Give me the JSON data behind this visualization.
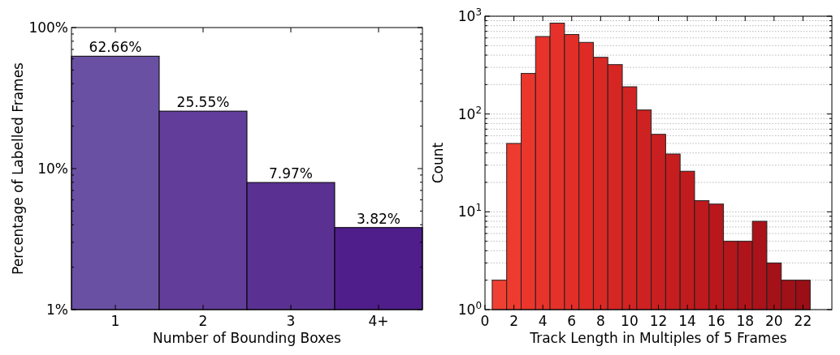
{
  "chart_data": [
    {
      "type": "bar",
      "xlabel": "Number of Bounding Boxes",
      "ylabel": "Percentage of Labelled Frames",
      "categories": [
        "1",
        "2",
        "3",
        "4+"
      ],
      "values": [
        62.66,
        25.55,
        7.97,
        3.82
      ],
      "colors": [
        "#6a50a3",
        "#623e9a",
        "#5a3192",
        "#4f1e8a"
      ],
      "value_labels": [
        "62.66%",
        "25.55%",
        "7.97%",
        "3.82%"
      ],
      "log": true,
      "ylim": [
        1,
        100
      ],
      "yticks": [
        {
          "value": 1,
          "label": "1%"
        },
        {
          "value": 2,
          "label": null
        },
        {
          "value": 3,
          "label": null
        },
        {
          "value": 4,
          "label": null
        },
        {
          "value": 5,
          "label": null
        },
        {
          "value": 6,
          "label": null
        },
        {
          "value": 7,
          "label": null
        },
        {
          "value": 8,
          "label": null
        },
        {
          "value": 9,
          "label": null
        },
        {
          "value": 10,
          "label": "10%"
        },
        {
          "value": 20,
          "label": null
        },
        {
          "value": 30,
          "label": null
        },
        {
          "value": 40,
          "label": null
        },
        {
          "value": 50,
          "label": null
        },
        {
          "value": 60,
          "label": null
        },
        {
          "value": 70,
          "label": null
        },
        {
          "value": 80,
          "label": null
        },
        {
          "value": 90,
          "label": null
        },
        {
          "value": 100,
          "label": "100%"
        }
      ],
      "grid": false
    },
    {
      "type": "histogram",
      "xlabel": "Track Length in Multiples of 5 Frames",
      "ylabel": "Count",
      "bins": [
        0.5,
        1.5,
        2.5,
        3.5,
        4.5,
        5.5,
        6.5,
        7.5,
        8.5,
        9.5,
        10.5,
        11.5,
        12.5,
        13.5,
        14.5,
        15.5,
        16.5,
        17.5,
        18.5,
        19.5,
        20.5,
        21.5,
        22.5
      ],
      "values": [
        2,
        50,
        260,
        620,
        850,
        650,
        540,
        380,
        320,
        190,
        110,
        62,
        39,
        26,
        13,
        12,
        5,
        5,
        8,
        3,
        2,
        2
      ],
      "colors": [
        "#ef4133",
        "#ee3b2f",
        "#eb362c",
        "#e8332b",
        "#e53129",
        "#e22e28",
        "#de2b26",
        "#da2925",
        "#d62624",
        "#d22422",
        "#ce2121",
        "#ca1f20",
        "#c61d1f",
        "#c21b1e",
        "#be191d",
        "#b9171c",
        "#b4161b",
        "#af141a",
        "#aa1319",
        "#a41118",
        "#9f1017",
        "#9a0e16"
      ],
      "log": true,
      "xlim": [
        0,
        24
      ],
      "xticks": [
        0,
        2,
        4,
        6,
        8,
        10,
        12,
        14,
        16,
        18,
        20,
        22
      ],
      "ylim": [
        1,
        1000
      ],
      "yticks": [
        {
          "value": 1,
          "label": "10$^{0}$"
        },
        {
          "value": 2,
          "label": null
        },
        {
          "value": 3,
          "label": null
        },
        {
          "value": 4,
          "label": null
        },
        {
          "value": 5,
          "label": null
        },
        {
          "value": 6,
          "label": null
        },
        {
          "value": 7,
          "label": null
        },
        {
          "value": 8,
          "label": null
        },
        {
          "value": 9,
          "label": null
        },
        {
          "value": 10,
          "label": "10$^{1}$"
        },
        {
          "value": 20,
          "label": null
        },
        {
          "value": 30,
          "label": null
        },
        {
          "value": 40,
          "label": null
        },
        {
          "value": 50,
          "label": null
        },
        {
          "value": 60,
          "label": null
        },
        {
          "value": 70,
          "label": null
        },
        {
          "value": 80,
          "label": null
        },
        {
          "value": 90,
          "label": null
        },
        {
          "value": 100,
          "label": "10$^{2}$"
        },
        {
          "value": 200,
          "label": null
        },
        {
          "value": 300,
          "label": null
        },
        {
          "value": 400,
          "label": null
        },
        {
          "value": 500,
          "label": null
        },
        {
          "value": 600,
          "label": null
        },
        {
          "value": 700,
          "label": null
        },
        {
          "value": 800,
          "label": null
        },
        {
          "value": 900,
          "label": null
        },
        {
          "value": 1000,
          "label": "10$^{3}$"
        }
      ],
      "grid": "y"
    }
  ]
}
